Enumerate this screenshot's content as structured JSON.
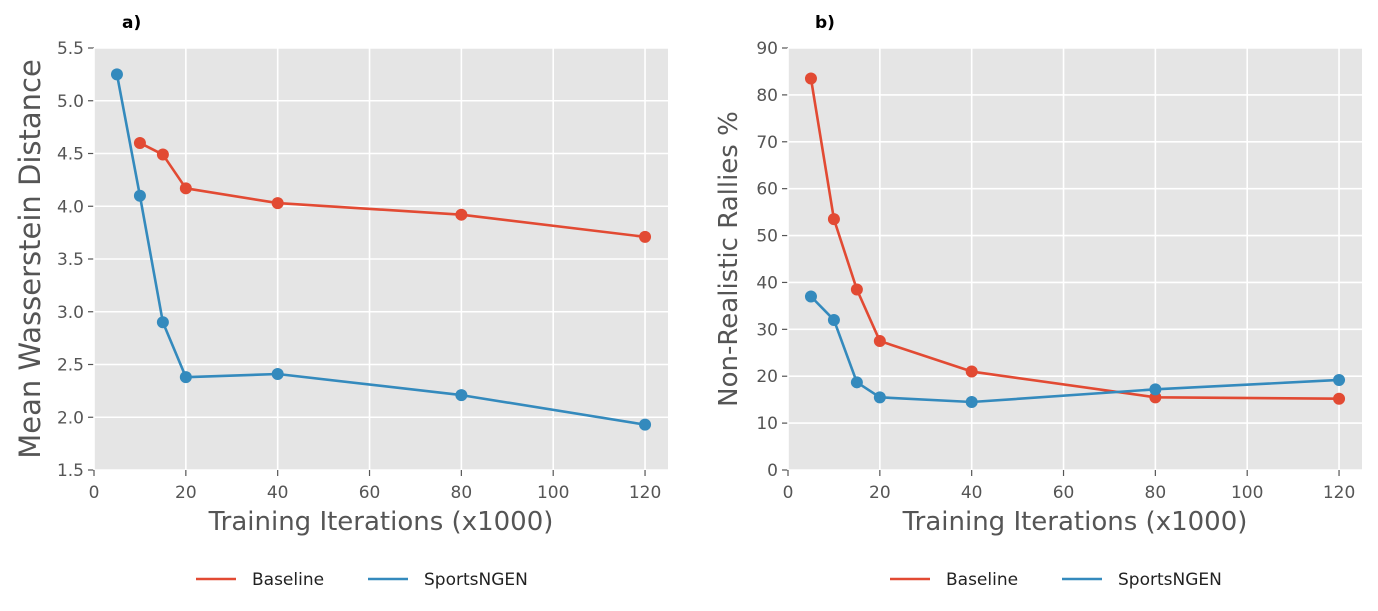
{
  "chart_data": [
    {
      "type": "line",
      "panel_label": "a)",
      "title": "",
      "xlabel": "Training Iterations (x1000)",
      "ylabel": "Mean Wasserstein Distance",
      "xlim": [
        0,
        125
      ],
      "ylim": [
        1.5,
        5.5
      ],
      "xticks": [
        0,
        20,
        40,
        60,
        80,
        100,
        120
      ],
      "yticks": [
        "1.5",
        "2.0",
        "2.5",
        "3.0",
        "3.5",
        "4.0",
        "4.5",
        "5.0",
        "5.5"
      ],
      "grid": true,
      "legend_position": "bottom-center",
      "series": [
        {
          "name": "Baseline",
          "color": "#E24A33",
          "x": [
            10,
            15,
            20,
            40,
            80,
            120
          ],
          "y": [
            4.6,
            4.49,
            4.17,
            4.03,
            3.92,
            3.71
          ]
        },
        {
          "name": "SportsNGEN",
          "color": "#348ABD",
          "x": [
            5,
            10,
            15,
            20,
            40,
            80,
            120
          ],
          "y": [
            5.25,
            4.1,
            2.9,
            2.38,
            2.41,
            2.21,
            1.93
          ]
        }
      ]
    },
    {
      "type": "line",
      "panel_label": "b)",
      "title": "",
      "xlabel": "Training Iterations (x1000)",
      "ylabel": "Non-Realistic Rallies %",
      "xlim": [
        0,
        125
      ],
      "ylim": [
        0,
        90
      ],
      "xticks": [
        0,
        20,
        40,
        60,
        80,
        100,
        120
      ],
      "yticks": [
        "0",
        "10",
        "20",
        "30",
        "40",
        "50",
        "60",
        "70",
        "80",
        "90"
      ],
      "grid": true,
      "legend_position": "bottom-center",
      "series": [
        {
          "name": "Baseline",
          "color": "#E24A33",
          "x": [
            5,
            10,
            15,
            20,
            40,
            80,
            120
          ],
          "y": [
            83.5,
            53.5,
            38.5,
            27.5,
            21.0,
            15.5,
            15.2
          ]
        },
        {
          "name": "SportsNGEN",
          "color": "#348ABD",
          "x": [
            5,
            10,
            15,
            20,
            40,
            80,
            120
          ],
          "y": [
            37.0,
            32.0,
            18.7,
            15.5,
            14.5,
            17.2,
            19.2
          ]
        }
      ]
    }
  ]
}
